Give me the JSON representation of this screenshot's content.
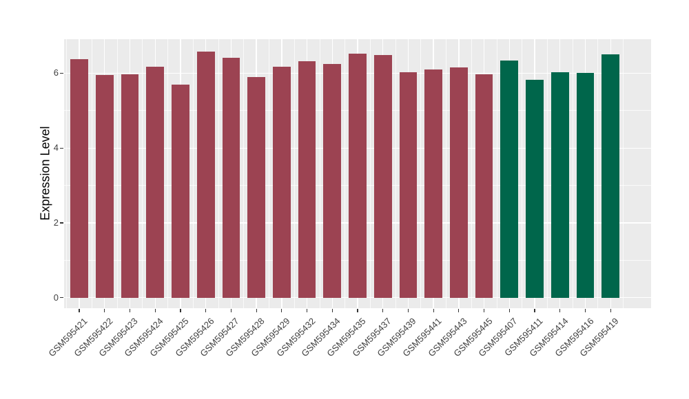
{
  "figure": {
    "background": "#FFFFFF",
    "panel_background": "#EBEBEB",
    "grid_major_color": "#FFFFFF",
    "grid_minor_color": "rgba(255,255,255,0.75)",
    "tick_color": "#333333",
    "tick_label_color": "#404040",
    "axis_title_color": "#000000"
  },
  "chart_data": {
    "type": "bar",
    "title": "",
    "xlabel": "",
    "ylabel": "Expression Level",
    "categories": [
      "GSM595421",
      "GSM595422",
      "GSM595423",
      "GSM595424",
      "GSM595425",
      "GSM595426",
      "GSM595427",
      "GSM595428",
      "GSM595429",
      "GSM595432",
      "GSM595434",
      "GSM595435",
      "GSM595437",
      "GSM595439",
      "GSM595441",
      "GSM595443",
      "GSM595445",
      "GSM595407",
      "GSM595411",
      "GSM595414",
      "GSM595416",
      "GSM595419"
    ],
    "values": [
      6.38,
      5.95,
      5.98,
      6.17,
      5.69,
      6.58,
      6.42,
      5.9,
      6.18,
      6.32,
      6.24,
      6.53,
      6.49,
      6.03,
      6.11,
      6.16,
      5.97,
      6.34,
      5.83,
      6.03,
      6.01,
      6.51
    ],
    "bar_colors": [
      "#9C4352",
      "#9C4352",
      "#9C4352",
      "#9C4352",
      "#9C4352",
      "#9C4352",
      "#9C4352",
      "#9C4352",
      "#9C4352",
      "#9C4352",
      "#9C4352",
      "#9C4352",
      "#9C4352",
      "#9C4352",
      "#9C4352",
      "#9C4352",
      "#9C4352",
      "#00664B",
      "#00664B",
      "#00664B",
      "#00664B",
      "#00664B"
    ],
    "color_legend": {
      "maroon": "#9C4352",
      "green": "#00664B"
    },
    "yticks": [
      0,
      2,
      4,
      6
    ],
    "ytick_labels": [
      "0",
      "2",
      "4",
      "6"
    ],
    "yminor": [
      1,
      3,
      5
    ],
    "ylim": [
      -0.28,
      6.91
    ],
    "bar_width_fraction": 0.7,
    "grid": true,
    "legend": false,
    "x_tick_rotation_deg": 45
  }
}
